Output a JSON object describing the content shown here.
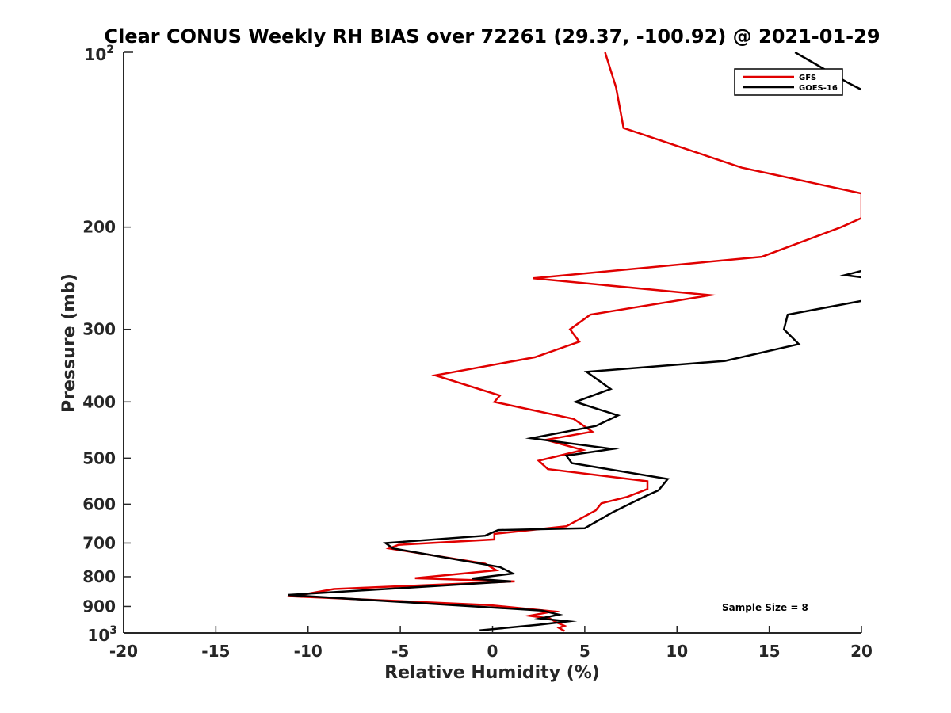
{
  "chart_data": {
    "type": "line",
    "title": "Clear CONUS Weekly RH BIAS over 72261 (29.37, -100.92) @ 2021-01-29",
    "xlabel": "Relative Humidity (%)",
    "ylabel": "Pressure (mb)",
    "xlim": [
      -20,
      20
    ],
    "ylim": [
      100,
      1000
    ],
    "y_scale": "log",
    "y_reversed": true,
    "grid": false,
    "legend_position": "top-right",
    "x_ticks": [
      "-20",
      "-15",
      "-10",
      "-5",
      "0",
      "5",
      "10",
      "15",
      "20"
    ],
    "y_ticks": [
      "200",
      "300",
      "400",
      "500",
      "600",
      "700",
      "800",
      "900"
    ],
    "y_tick_values": [
      200,
      300,
      400,
      500,
      600,
      700,
      800,
      900
    ],
    "y_ends": {
      "top_base": "10",
      "top_exp": "2",
      "bottom_base": "10",
      "bottom_exp": "3"
    },
    "annotation": "Sample Size = 8",
    "series": [
      {
        "name": "GFS",
        "color": "#e00000",
        "points": [
          [
            6.1,
            100
          ],
          [
            6.7,
            115
          ],
          [
            7.1,
            135
          ],
          [
            13.5,
            158
          ],
          [
            20,
            175
          ],
          [
            20,
            193
          ],
          [
            18.9,
            200
          ],
          [
            14.6,
            225
          ],
          [
            2.2,
            245
          ],
          [
            11.8,
            262
          ],
          [
            5.3,
            283
          ],
          [
            4.2,
            300
          ],
          [
            4.7,
            315
          ],
          [
            2.3,
            335
          ],
          [
            -3.1,
            360
          ],
          [
            0.4,
            390
          ],
          [
            0.1,
            400
          ],
          [
            4.4,
            428
          ],
          [
            5.4,
            450
          ],
          [
            2.9,
            465
          ],
          [
            4.9,
            484
          ],
          [
            2.5,
            505
          ],
          [
            3.0,
            522
          ],
          [
            8.4,
            548
          ],
          [
            8.4,
            565
          ],
          [
            7.3,
            583
          ],
          [
            5.9,
            598
          ],
          [
            5.6,
            615
          ],
          [
            4.0,
            655
          ],
          [
            0.1,
            675
          ],
          [
            0.1,
            690
          ],
          [
            -5.1,
            705
          ],
          [
            -5.6,
            715
          ],
          [
            -0.4,
            760
          ],
          [
            0.2,
            780
          ],
          [
            -4.2,
            805
          ],
          [
            1.2,
            815
          ],
          [
            -8.6,
            840
          ],
          [
            -10.8,
            865
          ],
          [
            -6.1,
            878
          ],
          [
            -0.2,
            895
          ],
          [
            3.3,
            918
          ],
          [
            2.0,
            934
          ],
          [
            3.1,
            944
          ],
          [
            3.5,
            960
          ],
          [
            3.9,
            972
          ],
          [
            3.6,
            980
          ],
          [
            3.8,
            988
          ],
          [
            3.9,
            992
          ]
        ]
      },
      {
        "name": "GOES-16",
        "color": "#000000",
        "points": [
          [
            16.4,
            100
          ],
          [
            19.3,
            113
          ],
          [
            20,
            116
          ],
          null,
          [
            20,
            238
          ],
          [
            19.1,
            242
          ],
          [
            20,
            244
          ],
          null,
          [
            20,
            268
          ],
          [
            16.0,
            283
          ],
          [
            15.8,
            300
          ],
          [
            16.6,
            318
          ],
          [
            12.6,
            340
          ],
          [
            5.1,
            355
          ],
          [
            6.4,
            380
          ],
          [
            4.5,
            400
          ],
          [
            6.8,
            422
          ],
          [
            5.6,
            440
          ],
          [
            2.1,
            462
          ],
          [
            6.5,
            482
          ],
          [
            4.0,
            495
          ],
          [
            4.3,
            510
          ],
          [
            9.5,
            543
          ],
          [
            9.0,
            568
          ],
          [
            8.2,
            583
          ],
          [
            6.5,
            620
          ],
          [
            5.0,
            660
          ],
          [
            0.3,
            665
          ],
          [
            -0.4,
            680
          ],
          [
            -5.8,
            700
          ],
          [
            -5.4,
            715
          ],
          [
            0.4,
            770
          ],
          [
            1.1,
            790
          ],
          [
            -1.1,
            806
          ],
          [
            1.0,
            815
          ],
          [
            -11.1,
            860
          ],
          [
            2.7,
            915
          ],
          [
            3.6,
            930
          ],
          [
            2.6,
            944
          ],
          [
            4.1,
            955
          ],
          [
            2.5,
            968
          ],
          [
            -0.7,
            990
          ]
        ]
      }
    ]
  }
}
